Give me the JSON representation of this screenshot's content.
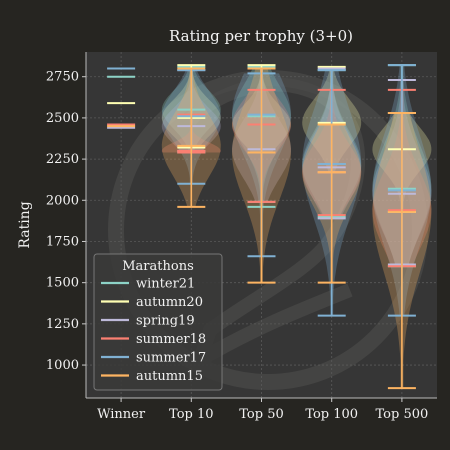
{
  "chart_data": {
    "type": "violin",
    "title": "Rating per trophy (3+0)",
    "xlabel": "",
    "ylabel": "Rating",
    "categories": [
      "Winner",
      "Top 10",
      "Top 50",
      "Top 100",
      "Top 500"
    ],
    "ylim": [
      800,
      2900
    ],
    "yticks": [
      1000,
      1250,
      1500,
      1750,
      2000,
      2250,
      2500,
      2750
    ],
    "grid": true,
    "legend": {
      "title": "Marathons",
      "placement": "lower-left"
    },
    "background_logo": "lichess-knight-logo",
    "series": [
      {
        "name": "winter21",
        "color": "#8dd3c7",
        "stats": [
          null,
          {
            "min": 2290,
            "max": 2810,
            "median": 2550
          },
          {
            "min": 1960,
            "max": 2810,
            "median": 2510
          },
          {
            "min": 1900,
            "max": 2790,
            "median": 2220
          },
          {
            "min": 1600,
            "max": 2820,
            "median": 2070
          }
        ],
        "winner_values": [
          2750
        ]
      },
      {
        "name": "autumn20",
        "color": "#ffffb3",
        "stats": [
          null,
          {
            "min": 2320,
            "max": 2820,
            "median": 2500
          },
          {
            "min": 2290,
            "max": 2820,
            "median": 2460
          },
          {
            "min": 2170,
            "max": 2810,
            "median": 2470
          },
          {
            "min": 1930,
            "max": 2530,
            "median": 2310
          }
        ],
        "winner_values": [
          2590
        ]
      },
      {
        "name": "spring19",
        "color": "#bebada",
        "stats": [
          null,
          {
            "min": 2300,
            "max": 2790,
            "median": 2450
          },
          {
            "min": 1990,
            "max": 2800,
            "median": 2310
          },
          {
            "min": 1890,
            "max": 2800,
            "median": 2200
          },
          {
            "min": 1610,
            "max": 2730,
            "median": 2040
          }
        ],
        "winner_values": [
          2440
        ]
      },
      {
        "name": "summer18",
        "color": "#fb8072",
        "stats": [
          null,
          {
            "min": 2290,
            "max": 2520,
            "median": 2300
          },
          {
            "min": 1990,
            "max": 2670,
            "median": 2460
          },
          {
            "min": 1910,
            "max": 2670,
            "median": 2170
          },
          {
            "min": 1600,
            "max": 2670,
            "median": 1940
          }
        ],
        "winner_values": [
          2460
        ]
      },
      {
        "name": "summer17",
        "color": "#80b1d3",
        "stats": [
          null,
          {
            "min": 2100,
            "max": 2790,
            "median": 2510
          },
          {
            "min": 1660,
            "max": 2770,
            "median": 2520
          },
          {
            "min": 1300,
            "max": 2790,
            "median": 2220
          },
          {
            "min": 1300,
            "max": 2820,
            "median": 2060
          }
        ],
        "winner_values": [
          2800
        ]
      },
      {
        "name": "autumn15",
        "color": "#fdb462",
        "stats": [
          null,
          {
            "min": 1960,
            "max": 2800,
            "median": 2330
          },
          {
            "min": 1500,
            "max": 2800,
            "median": 2290
          },
          {
            "min": 1500,
            "max": 2460,
            "median": 2170
          },
          {
            "min": 860,
            "max": 2530,
            "median": 1930
          }
        ],
        "winner_values": [
          2450
        ]
      }
    ]
  }
}
